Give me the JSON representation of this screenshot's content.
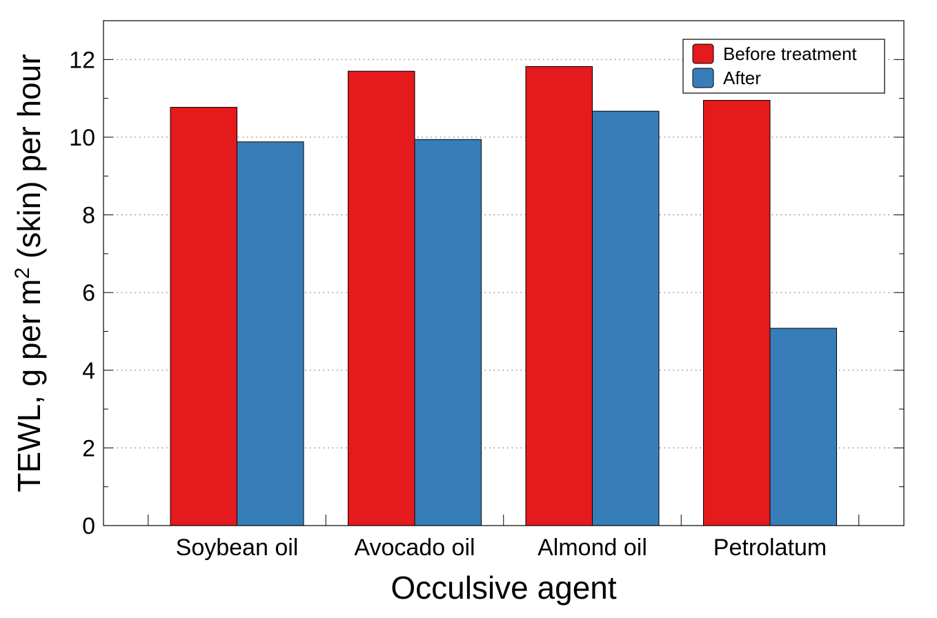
{
  "chart_data": {
    "type": "bar",
    "title": "",
    "xlabel": "Occulsive agent",
    "ylabel": "TEWL, g per m",
    "ylabel_sup": "2",
    "ylabel_rest": " (skin) per hour",
    "categories": [
      "Soybean oil",
      "Avocado oil",
      "Almond oil",
      "Petrolatum"
    ],
    "series": [
      {
        "name": "Before treatment",
        "color": "#e41a1c",
        "values": [
          10.77,
          11.7,
          11.82,
          10.95
        ]
      },
      {
        "name": "After",
        "color": "#377eb8",
        "values": [
          9.88,
          9.94,
          10.67,
          5.08
        ]
      }
    ],
    "ylim": [
      0,
      13
    ],
    "yticks": [
      "0",
      "2",
      "4",
      "6",
      "8",
      "10",
      "12"
    ],
    "grid": "horizontal-dotted",
    "legend": "top-right"
  }
}
